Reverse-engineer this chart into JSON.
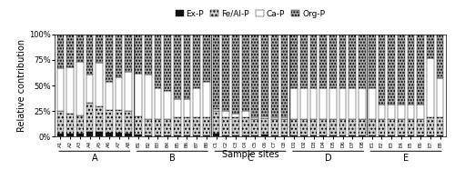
{
  "categories": [
    "A1",
    "A2",
    "A3",
    "A4",
    "A5",
    "A6",
    "A7",
    "A8",
    "B1",
    "B2",
    "B3",
    "B4",
    "B5",
    "B6",
    "B7",
    "B8",
    "C1",
    "C2",
    "C3",
    "C4",
    "C5",
    "C6",
    "C7",
    "C8",
    "D1",
    "D2",
    "D3",
    "D4",
    "D5",
    "D6",
    "D7",
    "D8",
    "E1",
    "E2",
    "E3",
    "E4",
    "E5",
    "E6",
    "E7",
    "E8"
  ],
  "groups": [
    "A",
    "B",
    "C",
    "D",
    "E"
  ],
  "group_members": [
    8,
    8,
    8,
    8,
    8
  ],
  "Ex_P": [
    3,
    3,
    3,
    5,
    5,
    4,
    4,
    3,
    2,
    1,
    1,
    1,
    1,
    1,
    1,
    1,
    3,
    1,
    1,
    1,
    1,
    2,
    1,
    1,
    1,
    1,
    1,
    1,
    1,
    1,
    1,
    1,
    1,
    1,
    1,
    1,
    1,
    1,
    1,
    1
  ],
  "FeAl_P": [
    22,
    20,
    18,
    28,
    25,
    22,
    22,
    22,
    18,
    16,
    16,
    16,
    18,
    18,
    18,
    18,
    22,
    18,
    18,
    18,
    16,
    16,
    16,
    16,
    16,
    16,
    16,
    16,
    16,
    16,
    16,
    16,
    16,
    16,
    16,
    16,
    16,
    16,
    18,
    18
  ],
  "Ca_P": [
    42,
    45,
    52,
    28,
    42,
    28,
    32,
    38,
    42,
    44,
    30,
    28,
    18,
    18,
    28,
    35,
    2,
    6,
    4,
    6,
    2,
    2,
    2,
    2,
    30,
    30,
    30,
    30,
    30,
    30,
    30,
    30,
    30,
    14,
    14,
    14,
    14,
    14,
    58,
    38
  ],
  "Org_P": [
    33,
    32,
    27,
    39,
    28,
    46,
    42,
    37,
    38,
    39,
    53,
    55,
    63,
    63,
    53,
    46,
    73,
    75,
    77,
    75,
    81,
    80,
    81,
    81,
    53,
    53,
    53,
    53,
    53,
    53,
    53,
    53,
    53,
    69,
    69,
    69,
    69,
    69,
    23,
    43
  ],
  "colors": {
    "Ex_P": "#111111",
    "FeAl_P": "#d0d0d0",
    "Ca_P": "#ffffff",
    "Org_P": "#aaaaaa"
  },
  "ylabel": "Relative contribution",
  "xlabel": "Sample sites",
  "yticks": [
    0,
    25,
    50,
    75,
    100
  ],
  "yticklabels": [
    "0%",
    "25%",
    "50%",
    "75%",
    "100%"
  ]
}
